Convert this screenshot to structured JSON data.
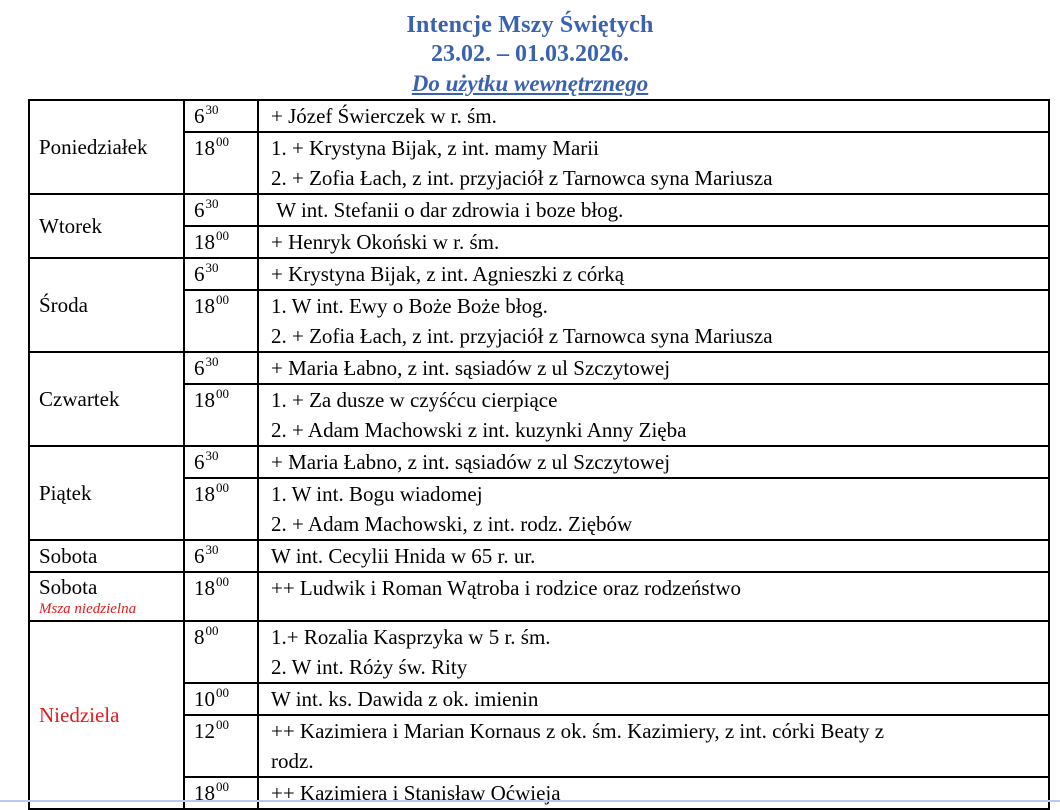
{
  "colors": {
    "accent_blue": "#3A62AE",
    "accent_red": "#E51A1A",
    "table_border": "#000000"
  },
  "header": {
    "title": "Intencje Mszy Świętych",
    "date_range": "23.02. – 01.03.2026.",
    "note": "Do użytku wewnętrznego"
  },
  "schedule": [
    {
      "day": "Poniedziałek",
      "masses": [
        {
          "hour": "6",
          "minutes": "30",
          "lines": [
            "+ Józef Świerczek w r. śm."
          ]
        },
        {
          "hour": "18",
          "minutes": "00",
          "lines": [
            "1. + Krystyna Bijak, z int. mamy Marii",
            "2. + Zofia Łach, z int. przyjaciół z Tarnowca syna Mariusza"
          ]
        }
      ]
    },
    {
      "day": "Wtorek",
      "masses": [
        {
          "hour": "6",
          "minutes": "30",
          "lines": [
            " W int. Stefanii o dar zdrowia i boze błog."
          ]
        },
        {
          "hour": "18",
          "minutes": "00",
          "lines": [
            "+ Henryk Okoński w r. śm."
          ]
        }
      ]
    },
    {
      "day": "Środa",
      "masses": [
        {
          "hour": "6",
          "minutes": "30",
          "lines": [
            "+ Krystyna Bijak, z int. Agnieszki z córką"
          ]
        },
        {
          "hour": "18",
          "minutes": "00",
          "lines": [
            "1. W int. Ewy o Boże Boże błog.",
            "2. + Zofia Łach, z int. przyjaciół z Tarnowca syna Mariusza"
          ]
        }
      ]
    },
    {
      "day": "Czwartek",
      "masses": [
        {
          "hour": "6",
          "minutes": "30",
          "lines": [
            "+ Maria Łabno, z int. sąsiadów z ul Szczytowej"
          ]
        },
        {
          "hour": "18",
          "minutes": "00",
          "lines": [
            "1. + Za dusze w czyśćcu cierpiące",
            "2. + Adam Machowski z int. kuzynki Anny Zięba"
          ]
        }
      ]
    },
    {
      "day": "Piątek",
      "masses": [
        {
          "hour": "6",
          "minutes": "30",
          "lines": [
            "+ Maria Łabno, z int. sąsiadów z ul Szczytowej"
          ]
        },
        {
          "hour": "18",
          "minutes": "00",
          "lines": [
            "1. W int. Bogu wiadomej",
            "2. + Adam Machowski, z int. rodz. Ziębów"
          ]
        }
      ]
    },
    {
      "day": "Sobota",
      "masses": [
        {
          "hour": "6",
          "minutes": "30",
          "lines": [
            "W int. Cecylii Hnida w 65 r. ur."
          ]
        }
      ]
    },
    {
      "day": "Sobota",
      "day_note": "Msza niedzielna",
      "masses": [
        {
          "hour": "18",
          "minutes": "00",
          "lines": [
            "++ Ludwik i Roman Wątroba i rodzice oraz rodzeństwo"
          ]
        }
      ]
    },
    {
      "day": "Niedziela",
      "day_color": "#E51A1A",
      "masses": [
        {
          "hour": "8",
          "minutes": "00",
          "lines": [
            "1.+ Rozalia Kasprzyka w 5 r. śm.",
            "2. W int. Róży św. Rity"
          ]
        },
        {
          "hour": "10",
          "minutes": "00",
          "lines": [
            "W int. ks. Dawida z ok. imienin"
          ]
        },
        {
          "hour": "12",
          "minutes": "00",
          "lines": [
            "++ Kazimiera i Marian Kornaus z ok. śm. Kazimiery, z int. córki Beaty z",
            "rodz."
          ]
        },
        {
          "hour": "18",
          "minutes": "00",
          "lines": [
            "++ Kazimiera i Stanisław Oćwieja"
          ]
        }
      ]
    }
  ]
}
